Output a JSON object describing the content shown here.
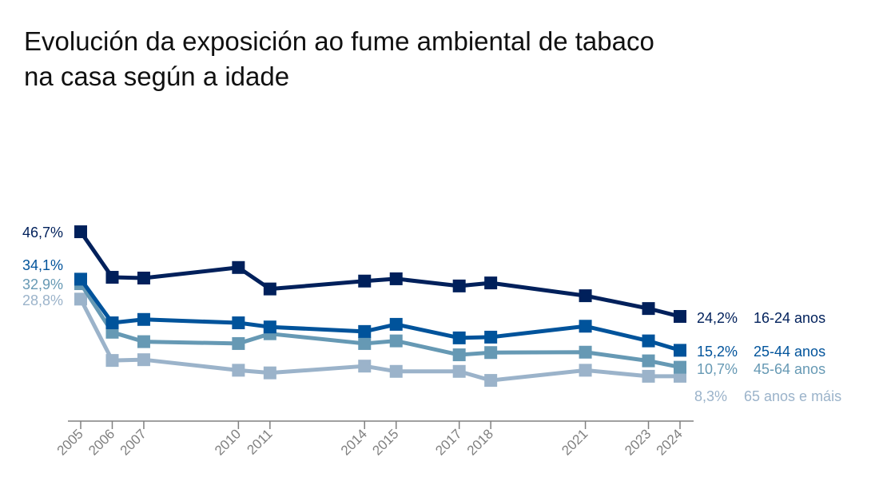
{
  "title": {
    "line1": "Evolución da exposición ao fume ambiental de tabaco",
    "line2": "na casa según a idade"
  },
  "chart_data": {
    "type": "line",
    "title": "Evolución da exposición ao fume ambiental de tabaco na casa según a idade",
    "xlabel": "",
    "ylabel": "",
    "x": [
      2005,
      2006,
      2007,
      2010,
      2011,
      2014,
      2015,
      2017,
      2018,
      2021,
      2023,
      2024
    ],
    "x_tick_labels": [
      "2005",
      "2006",
      "2007",
      "2010",
      "2011",
      "2014",
      "2015",
      "2017",
      "2018",
      "2021",
      "2023",
      "2024"
    ],
    "ylim": [
      0,
      50
    ],
    "grid": false,
    "legend_position": "direct-labels-right",
    "series": [
      {
        "name": "16-24 anos",
        "color": "#00205B",
        "values": [
          46.7,
          34.6,
          34.4,
          37.2,
          31.5,
          33.6,
          34.2,
          32.3,
          33.1,
          29.7,
          26.3,
          24.2
        ],
        "start_label": "46,7%",
        "end_label": "24,2%"
      },
      {
        "name": "25-44 anos",
        "color": "#00539B",
        "values": [
          34.1,
          22.5,
          23.4,
          22.5,
          21.4,
          20.2,
          22.1,
          18.5,
          18.7,
          21.6,
          17.7,
          15.2
        ],
        "start_label": "34,1%",
        "end_label": "15,2%"
      },
      {
        "name": "45-64 anos",
        "color": "#6699B4",
        "values": [
          32.9,
          20.0,
          17.5,
          17.0,
          19.6,
          17.0,
          17.7,
          14.0,
          14.6,
          14.7,
          12.4,
          10.7
        ],
        "start_label": "32,9%",
        "end_label": "10,7%"
      },
      {
        "name": "65 anos e máis",
        "color": "#9BB3CA",
        "values": [
          28.8,
          12.5,
          12.7,
          9.9,
          9.2,
          11.0,
          9.6,
          9.6,
          7.2,
          9.9,
          8.3,
          8.3
        ],
        "start_label": "28,8%",
        "end_label": "8,3%"
      }
    ]
  }
}
